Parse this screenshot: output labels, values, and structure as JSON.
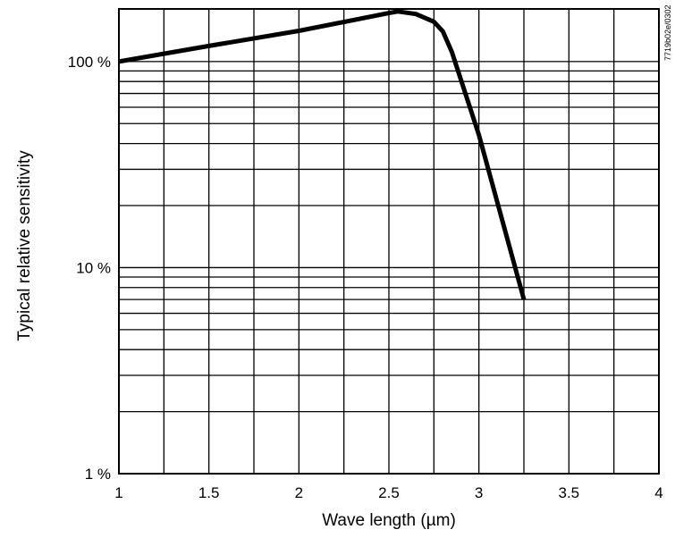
{
  "chart_data": {
    "type": "line",
    "xlabel": "Wave length (µm)",
    "ylabel": "Typical relative sensitivity",
    "xlim": [
      1,
      4
    ],
    "ylim": [
      1,
      180
    ],
    "yscale": "log",
    "grid": true,
    "x_ticks": [
      "1",
      "1.5",
      "2",
      "2.5",
      "3",
      "3.5",
      "4"
    ],
    "y_ticks": [
      {
        "value": 1,
        "label": "1 %"
      },
      {
        "value": 10,
        "label": "10 %"
      },
      {
        "value": 100,
        "label": "100 %"
      }
    ],
    "series": [
      {
        "x": [
          1.0,
          1.5,
          2.0,
          2.5,
          2.55,
          2.65,
          2.75,
          2.8,
          2.85,
          3.0,
          3.25
        ],
        "y": [
          100,
          119,
          141,
          172,
          175,
          170,
          156,
          140,
          111,
          44,
          7
        ]
      }
    ]
  },
  "figure_code": "7719b02e/0302"
}
